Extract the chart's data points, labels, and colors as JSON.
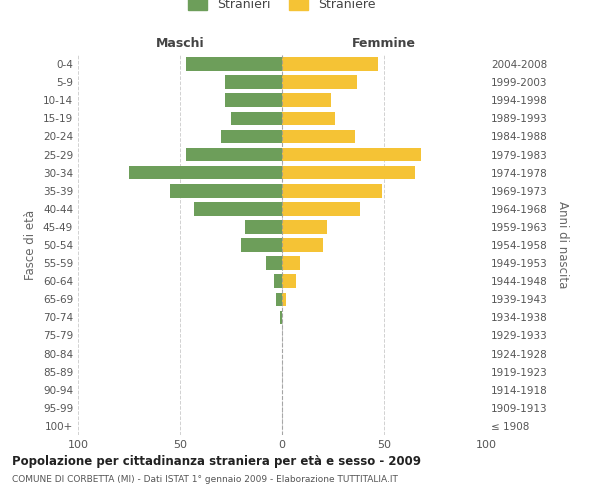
{
  "age_groups": [
    "100+",
    "95-99",
    "90-94",
    "85-89",
    "80-84",
    "75-79",
    "70-74",
    "65-69",
    "60-64",
    "55-59",
    "50-54",
    "45-49",
    "40-44",
    "35-39",
    "30-34",
    "25-29",
    "20-24",
    "15-19",
    "10-14",
    "5-9",
    "0-4"
  ],
  "birth_years": [
    "≤ 1908",
    "1909-1913",
    "1914-1918",
    "1919-1923",
    "1924-1928",
    "1929-1933",
    "1934-1938",
    "1939-1943",
    "1944-1948",
    "1949-1953",
    "1954-1958",
    "1959-1963",
    "1964-1968",
    "1969-1973",
    "1974-1978",
    "1979-1983",
    "1984-1988",
    "1989-1993",
    "1994-1998",
    "1999-2003",
    "2004-2008"
  ],
  "males": [
    0,
    0,
    0,
    0,
    0,
    0,
    1,
    3,
    4,
    8,
    20,
    18,
    43,
    55,
    75,
    47,
    30,
    25,
    28,
    28,
    47
  ],
  "females": [
    0,
    0,
    0,
    0,
    0,
    0,
    0,
    2,
    7,
    9,
    20,
    22,
    38,
    49,
    65,
    68,
    36,
    26,
    24,
    37,
    47
  ],
  "male_color": "#6d9e5a",
  "female_color": "#f5c335",
  "background_color": "#ffffff",
  "grid_color": "#cccccc",
  "title": "Popolazione per cittadinanza straniera per età e sesso - 2009",
  "subtitle": "COMUNE DI CORBETTA (MI) - Dati ISTAT 1° gennaio 2009 - Elaborazione TUTTITALIA.IT",
  "left_header": "Maschi",
  "right_header": "Femmine",
  "left_ylabel": "Fasce di età",
  "right_ylabel": "Anni di nascita",
  "legend_male": "Stranieri",
  "legend_female": "Straniere",
  "xlim": 100
}
